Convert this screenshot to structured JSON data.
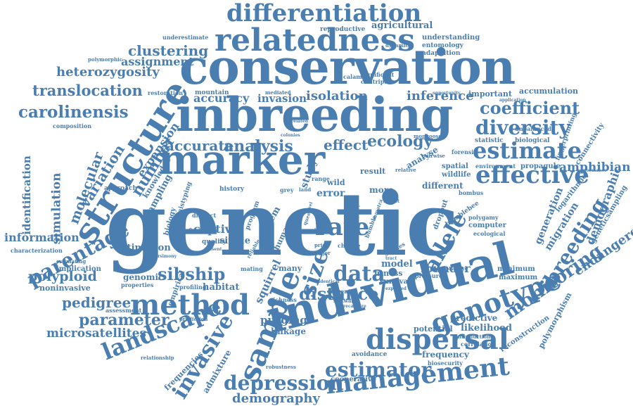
{
  "colors": {
    "word": "#4a7eb0",
    "background": "#ffffff"
  },
  "words": {
    "genetic": "genetic",
    "individual": "individual",
    "conservation": "conservation",
    "inbreeding": "inbreeding",
    "marker": "marker",
    "structure": "structure",
    "relatedness": "relatedness",
    "differentiation": "differentiation",
    "sample": "sample",
    "method": "method",
    "genotype": "genotype",
    "dispersal": "dispersal",
    "management": "management",
    "estimator": "estimator",
    "effective": "effective",
    "estimate": "estimate",
    "diversity": "diversity",
    "coefficient": "coefficient",
    "landscape": "landscape",
    "invasive": "invasive",
    "depression": "depression",
    "monitoring": "monitoring",
    "breeding": "breeding",
    "parentage": "parentage",
    "carolinensis": "carolinensis",
    "translocation": "translocation",
    "heterozygosity": "heterozygosity",
    "clustering": "clustering",
    "assignment": "assignment",
    "rate": "rate",
    "size": "size",
    "data": "data",
    "allele": "allele",
    "distance": "distance",
    "parameter": "parameter",
    "pedigree": "pedigree",
    "microsatellites": "microsatellites",
    "sibship": "sibship",
    "demography": "demography",
    "accurate": "accurate",
    "analysis": "analysis",
    "effect": "effect",
    "ecology": "ecology",
    "isolation": "isolation",
    "inference": "inference",
    "accuracy": "accuracy",
    "invasion": "invasion",
    "amphibian": "amphibian",
    "endangered": "endangered",
    "demographic": "demographic",
    "generation": "generation",
    "migration": "migration",
    "number": "number",
    "expansion": "expansion",
    "variation": "variation",
    "molecular": "molecular",
    "simulation": "simulation",
    "identification": "identification",
    "information": "information",
    "polyploid": "polyploid",
    "estimation": "estimation",
    "captive": "captive",
    "single": "single",
    "quality": "quality",
    "founder": "founder",
    "model": "model",
    "fitness": "fitness",
    "survival": "survival",
    "purging": "purging",
    "linkage": "linkage",
    "potential": "potential",
    "likelihood": "likelihood",
    "frequency": "frequency",
    "cooperative": "cooperative",
    "avoidance": "avoidance",
    "admixture": "admixture",
    "frequencies": "frequencies",
    "genomic": "genomic",
    "properties": "properties",
    "implication": "implication",
    "noninvasive": "noninvasive",
    "habitat": "habitat",
    "profiling": "profiling",
    "mating": "mating",
    "many": "many",
    "squirrel": "squirrel",
    "study": "study",
    "system": "system",
    "human": "human",
    "error": "error",
    "more": "more",
    "different": "different",
    "result": "result",
    "analyse": "analyse",
    "spatial": "spatial",
    "wildlife": "wildlife",
    "important": "important",
    "accumulation": "accumulation",
    "statistic": "statistic",
    "biological": "biological",
    "computer": "computer",
    "polygamy": "polygamy",
    "ecological": "ecological",
    "minimum": "minimum",
    "maximum": "maximum",
    "predictive": "predictive",
    "reconstruction": "reconstruction",
    "polymorphism": "polymorphism",
    "geneticsampling": "geneticsampling",
    "logarithmic": "logarithmic",
    "bumblebee": "bumblebee",
    "propagule": "propagule",
    "environment": "environment",
    "fingerprinting": "fingerprinting",
    "connectivity": "connectivity",
    "understanding": "understanding",
    "entomology": "entomology",
    "adaptation": "adaptation",
    "reproductive": "reproductive",
    "agricultural": "agricultural",
    "underestimate": "underestimate",
    "mountain": "mountain",
    "calamita": "calamita",
    "significant": "significant",
    "restoration": "restoration",
    "knowledge": "knowledge",
    "sampling": "sampling",
    "approach": "approach",
    "biology": "biology",
    "empirical": "empirical",
    "characterization": "characterization",
    "mistyping": "mistyping",
    "composition": "composition",
    "dropout": "dropout",
    "richness": "richness",
    "software": "software",
    "current": "current",
    "wild": "wild",
    "range": "range",
    "dynamic": "dynamic",
    "pressure": "pressure",
    "biosecurity": "biosecurity",
    "relationship": "relationship",
    "assessment": "assessment",
    "prediction": "prediction",
    "correlation": "correlation",
    "introduction": "introduction",
    "robustness": "robustness",
    "polymorphic": "polymorphic",
    "unbalanced": "unbalanced",
    "forensic": "forensic",
    "pairwise": "pairwise",
    "mongoose": "mongoose",
    "opportunity": "opportunity",
    "application": "application",
    "performance": "performance",
    "culitripes": "culitripes",
    "mediated": "mediated",
    "colonies": "colonies",
    "distinct": "distinct",
    "program": "program",
    "history": "history",
    "grey": "grey",
    "land": "land",
    "tiger": "tiger",
    "sumatra": "sumatra",
    "bumble": "bumble",
    "forest": "forest",
    "change": "change",
    "prior": "prior",
    "major": "major",
    "studies": "studies",
    "identical": "identical",
    "expected": "expected",
    "recapture": "recapture",
    "sumatran": "sumatran",
    "bombus": "bombus",
    "queen": "queen",
    "level": "level",
    "bold": "bold",
    "relative": "relative",
    "probability": "probability",
    "related": "related",
    "reliable": "reliable",
    "present": "present",
    "tract": "tract",
    "estimating": "estimating",
    "parsimony": "parsimony"
  }
}
